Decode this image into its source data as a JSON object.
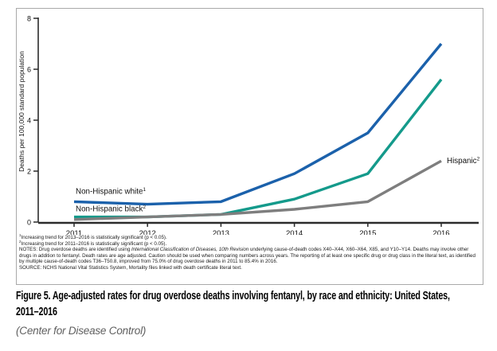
{
  "chart_data": {
    "type": "line",
    "title": "Figure 5. Age-adjusted rates for drug overdose deaths involving fentanyl, by race and ethnicity: United States, 2011–2016",
    "xlabel": "",
    "ylabel": "Deaths per 100,000 standard population",
    "categories": [
      "2011",
      "2012",
      "2013",
      "2014",
      "2015",
      "2016"
    ],
    "ylim": [
      0,
      8
    ],
    "yticks": [
      0,
      2,
      4,
      6,
      8
    ],
    "grid": false,
    "legend_position": "inline-labels",
    "series": [
      {
        "name": "Non-Hispanic white",
        "superscript": "1",
        "color": "#1b61ab",
        "values": [
          0.8,
          0.7,
          0.8,
          1.9,
          3.5,
          7.0
        ],
        "label_position": "start-above"
      },
      {
        "name": "Non-Hispanic black",
        "superscript": "2",
        "color": "#149a8b",
        "values": [
          0.2,
          0.2,
          0.3,
          0.9,
          1.9,
          5.6
        ],
        "label_position": "start-above"
      },
      {
        "name": "Hispanic",
        "superscript": "2",
        "color": "#7e7e7e",
        "values": [
          0.1,
          0.2,
          0.3,
          0.5,
          0.8,
          2.4
        ],
        "label_position": "end-right"
      }
    ]
  },
  "footnotes": {
    "sig1": {
      "sup": "1",
      "text": "Increasing trend for 2013–2016 is statistically significant (p < 0.05)."
    },
    "sig2": {
      "sup": "2",
      "text": "Increasing trend for 2011–2016 is statistically significant (p < 0.05)."
    },
    "notes": {
      "prefix": "NOTES: Drug overdose deaths are identified using ",
      "italic": "International Classification of Diseases, 10th Revision",
      "suffix": " underlying cause-of-death codes X40–X44, X60–X64, X85, and Y10–Y14. Deaths may involve other drugs in addition to fentanyl. Death rates are age adjusted. Caution should be used when comparing numbers across years. The reporting of at least one specific drug or drug class in the literal text, as identified by multiple cause-of-death codes T36–T50.8, improved from 75.0% of drug overdose deaths in 2011 to 85.4% in 2016."
    },
    "source": "SOURCE: NCHS National Vital Statistics System, Mortality files linked with death certificate literal text."
  },
  "caption": {
    "lines": [
      "Figure 5. Age-adjusted rates for drug overdose deaths involving fentanyl, by race and ethnicity: United States,",
      "2011–2016"
    ]
  },
  "attribution": "(Center for Disease Control)"
}
